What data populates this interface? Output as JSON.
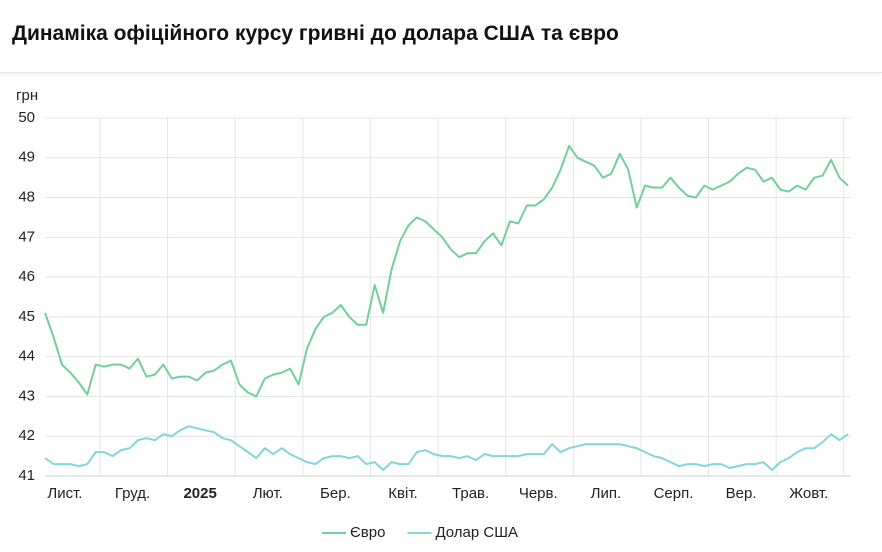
{
  "chart_data": {
    "type": "line",
    "title": "Динаміка офіційного курсу гривні до долара США та євро",
    "y_label": "грн",
    "categories": [
      null,
      null,
      "Лист.",
      null,
      null,
      null,
      null,
      null,
      null,
      null,
      "Груд.",
      null,
      null,
      null,
      null,
      null,
      null,
      null,
      "2025",
      null,
      null,
      null,
      null,
      null,
      null,
      null,
      "Лют.",
      null,
      null,
      null,
      null,
      null,
      null,
      null,
      "Бер.",
      null,
      null,
      null,
      null,
      null,
      null,
      null,
      "Квіт.",
      null,
      null,
      null,
      null,
      null,
      null,
      null,
      "Трав.",
      null,
      null,
      null,
      null,
      null,
      null,
      null,
      "Черв.",
      null,
      null,
      null,
      null,
      null,
      null,
      null,
      "Лип.",
      null,
      null,
      null,
      null,
      null,
      null,
      null,
      "Серп.",
      null,
      null,
      null,
      null,
      null,
      null,
      null,
      "Вер.",
      null,
      null,
      null,
      null,
      null,
      null,
      null,
      "Жовт.",
      null,
      null,
      null,
      null,
      null
    ],
    "series": [
      {
        "name": "Євро",
        "color": "#72cf9b",
        "values": [
          45.1,
          44.5,
          43.8,
          43.6,
          43.35,
          43.05,
          43.8,
          43.75,
          43.8,
          43.8,
          43.7,
          43.95,
          43.5,
          43.55,
          43.8,
          43.45,
          43.5,
          43.5,
          43.4,
          43.6,
          43.65,
          43.8,
          43.9,
          43.3,
          43.1,
          43.0,
          43.45,
          43.55,
          43.6,
          43.7,
          43.3,
          44.2,
          44.7,
          45.0,
          45.1,
          45.3,
          45.0,
          44.8,
          44.8,
          45.8,
          45.1,
          46.2,
          46.9,
          47.3,
          47.5,
          47.4,
          47.2,
          47.0,
          46.7,
          46.5,
          46.6,
          46.6,
          46.9,
          47.1,
          46.8,
          47.4,
          47.35,
          47.8,
          47.8,
          47.95,
          48.25,
          48.7,
          49.3,
          49.0,
          48.9,
          48.8,
          48.5,
          48.6,
          49.1,
          48.7,
          47.75,
          48.3,
          48.25,
          48.25,
          48.5,
          48.25,
          48.05,
          48.0,
          48.3,
          48.2,
          48.3,
          48.4,
          48.6,
          48.75,
          48.7,
          48.4,
          48.5,
          48.2,
          48.15,
          48.3,
          48.2,
          48.5,
          48.55,
          48.95,
          48.5,
          48.3
        ]
      },
      {
        "name": "Долар США",
        "color": "#82d5d8",
        "values": [
          41.45,
          41.3,
          41.3,
          41.3,
          41.25,
          41.3,
          41.6,
          41.6,
          41.5,
          41.65,
          41.7,
          41.9,
          41.95,
          41.9,
          42.05,
          42.0,
          42.15,
          42.25,
          42.2,
          42.15,
          42.1,
          41.95,
          41.9,
          41.75,
          41.6,
          41.45,
          41.7,
          41.55,
          41.7,
          41.55,
          41.45,
          41.35,
          41.3,
          41.45,
          41.5,
          41.5,
          41.45,
          41.5,
          41.3,
          41.35,
          41.15,
          41.35,
          41.3,
          41.3,
          41.6,
          41.65,
          41.55,
          41.5,
          41.5,
          41.45,
          41.5,
          41.4,
          41.55,
          41.5,
          41.5,
          41.5,
          41.5,
          41.55,
          41.55,
          41.55,
          41.8,
          41.6,
          41.7,
          41.75,
          41.8,
          41.8,
          41.8,
          41.8,
          41.8,
          41.75,
          41.7,
          41.6,
          41.5,
          41.45,
          41.35,
          41.25,
          41.3,
          41.3,
          41.25,
          41.3,
          41.3,
          41.2,
          41.25,
          41.3,
          41.3,
          41.35,
          41.15,
          41.35,
          41.45,
          41.6,
          41.7,
          41.7,
          41.85,
          42.05,
          41.9,
          42.05
        ]
      }
    ],
    "ylim": [
      41,
      50
    ],
    "yticks": [
      41,
      42,
      43,
      44,
      45,
      46,
      47,
      48,
      49,
      50
    ],
    "grid": true,
    "legend": "bottom"
  }
}
